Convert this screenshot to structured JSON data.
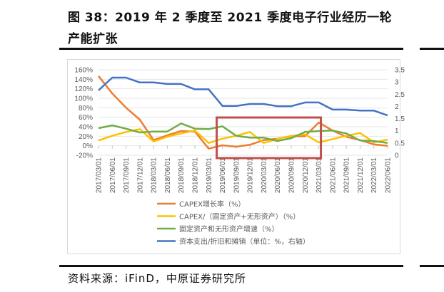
{
  "figure": {
    "title_line1": "图 38：2019 年 2 季度至 2021 季度电子行业经历一轮",
    "title_line2": "产能扩张",
    "source": "资料来源：iFinD，中原证券研究所"
  },
  "chart_data": {
    "type": "line",
    "x": [
      "2017/03/01",
      "2017/06/01",
      "2017/09/01",
      "2017/12/01",
      "2018/03/01",
      "2018/06/01",
      "2018/09/01",
      "2018/12/01",
      "2019/03/01",
      "2019/06/01",
      "2019/09/01",
      "2019/12/01",
      "2020/03/01",
      "2020/06/01",
      "2020/09/01",
      "2020/12/01",
      "2021/03/01",
      "2021/06/01",
      "2021/09/01",
      "2021/12/01",
      "2022/03/01",
      "2022/06/01"
    ],
    "y_left": {
      "min": -20,
      "max": 160,
      "step": 20,
      "ticks": [
        "-20%",
        "0%",
        "20%",
        "40%",
        "60%",
        "80%",
        "100%",
        "120%",
        "140%",
        "160%"
      ]
    },
    "y_right": {
      "min": 0,
      "max": 3.5,
      "step": 0.5,
      "ticks": [
        "0",
        "0.5",
        "1",
        "1.5",
        "2",
        "2.5",
        "3",
        "3.5"
      ]
    },
    "grid": true,
    "legend_position": "bottom",
    "series": [
      {
        "name": "CAPEX增长率（%）",
        "axis": "left",
        "color": "#ED7D31",
        "values": [
          147,
          110,
          80,
          55,
          12,
          22,
          31,
          30,
          -6,
          1,
          -2,
          2,
          12,
          15,
          20,
          20,
          49,
          32,
          19,
          12,
          3,
          0
        ]
      },
      {
        "name": "CAPEX/（固定资产+无形资产）（%）",
        "axis": "left",
        "color": "#FFC000",
        "values": [
          11,
          21,
          29,
          35,
          9,
          19,
          26,
          32,
          6,
          15,
          21,
          29,
          6,
          14,
          21,
          24,
          7,
          14,
          21,
          27,
          7,
          13
        ]
      },
      {
        "name": "固定资产和无形资产增速（%）",
        "axis": "left",
        "color": "#70AD47",
        "values": [
          37,
          43,
          36,
          28,
          30,
          30,
          47,
          36,
          35,
          41,
          21,
          17,
          17,
          10,
          16,
          29,
          31,
          32,
          26,
          11,
          10,
          6
        ]
      },
      {
        "name": "资本支出/折旧和摊销（单位：%，右轴）",
        "axis": "right",
        "color": "#4472C4",
        "values": [
          2.66,
          3.18,
          3.18,
          2.98,
          2.98,
          2.92,
          2.92,
          2.7,
          2.7,
          2.02,
          2.02,
          2.1,
          2.1,
          2.01,
          2.01,
          2.16,
          2.16,
          1.87,
          1.87,
          1.83,
          1.83,
          1.63
        ]
      }
    ],
    "highlight": {
      "from": "2019/06/01",
      "to": "2021/03/01",
      "color": "#C0504D"
    }
  }
}
